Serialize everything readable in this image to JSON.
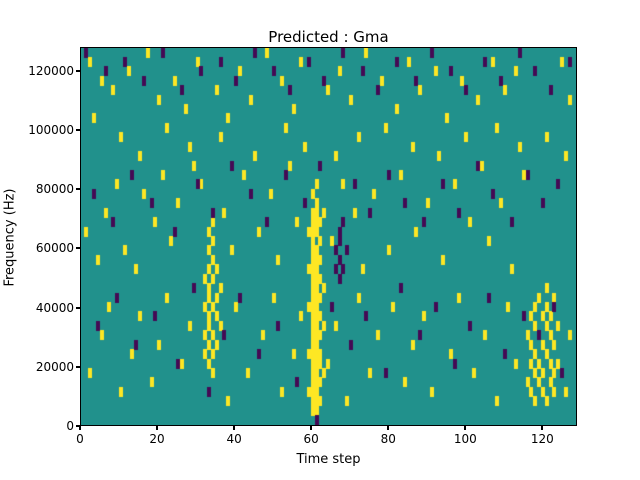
{
  "chart_data": {
    "type": "heatmap",
    "title": "Predicted : Gma",
    "xlabel": "Time step",
    "ylabel": "Frequency (Hz)",
    "xlim": [
      0,
      129
    ],
    "ylim": [
      0,
      128000
    ],
    "x_ticks": [
      0,
      20,
      40,
      60,
      80,
      100,
      120
    ],
    "y_ticks": [
      0,
      20000,
      40000,
      60000,
      80000,
      100000,
      120000
    ],
    "grid_on": false,
    "legend": "none",
    "grid": {
      "cols": 129,
      "rows": 40,
      "row_height_hz": 3200
    },
    "colors": {
      "background": "#21918c",
      "high": "#fde724",
      "low": "#440a54"
    },
    "cells_high": [
      [
        60,
        1
      ],
      [
        60,
        2
      ],
      [
        60,
        3
      ],
      [
        60,
        4
      ],
      [
        60,
        5
      ],
      [
        60,
        6
      ],
      [
        60,
        7
      ],
      [
        60,
        8
      ],
      [
        60,
        9
      ],
      [
        60,
        10
      ],
      [
        60,
        11
      ],
      [
        60,
        12
      ],
      [
        60,
        13
      ],
      [
        60,
        14
      ],
      [
        60,
        15
      ],
      [
        60,
        16
      ],
      [
        60,
        17
      ],
      [
        60,
        18
      ],
      [
        60,
        19
      ],
      [
        60,
        20
      ],
      [
        60,
        21
      ],
      [
        60,
        22
      ],
      [
        60,
        24
      ],
      [
        61,
        1
      ],
      [
        61,
        2
      ],
      [
        61,
        3
      ],
      [
        61,
        4
      ],
      [
        61,
        5
      ],
      [
        61,
        6
      ],
      [
        61,
        7
      ],
      [
        61,
        8
      ],
      [
        61,
        9
      ],
      [
        61,
        10
      ],
      [
        61,
        11
      ],
      [
        61,
        12
      ],
      [
        61,
        13
      ],
      [
        61,
        14
      ],
      [
        61,
        15
      ],
      [
        61,
        16
      ],
      [
        61,
        17
      ],
      [
        61,
        18
      ],
      [
        61,
        20
      ],
      [
        61,
        21
      ],
      [
        61,
        22
      ],
      [
        61,
        23
      ],
      [
        61,
        25
      ],
      [
        62,
        2
      ],
      [
        62,
        4
      ],
      [
        62,
        6
      ],
      [
        62,
        7
      ],
      [
        62,
        9
      ],
      [
        62,
        11
      ],
      [
        62,
        13
      ],
      [
        62,
        15
      ],
      [
        62,
        17
      ],
      [
        62,
        19
      ],
      [
        62,
        21
      ],
      [
        59,
        3
      ],
      [
        59,
        7
      ],
      [
        59,
        12
      ],
      [
        59,
        16
      ],
      [
        59,
        20
      ],
      [
        63,
        5
      ],
      [
        63,
        10
      ],
      [
        63,
        14
      ],
      [
        63,
        22
      ],
      [
        32,
        7
      ],
      [
        32,
        9
      ],
      [
        32,
        12
      ],
      [
        32,
        15
      ],
      [
        33,
        6
      ],
      [
        33,
        8
      ],
      [
        33,
        10
      ],
      [
        33,
        11
      ],
      [
        33,
        13
      ],
      [
        33,
        14
      ],
      [
        33,
        16
      ],
      [
        33,
        18
      ],
      [
        33,
        20
      ],
      [
        34,
        5
      ],
      [
        34,
        7
      ],
      [
        34,
        9
      ],
      [
        34,
        12
      ],
      [
        34,
        15
      ],
      [
        34,
        17
      ],
      [
        34,
        19
      ],
      [
        34,
        21
      ],
      [
        35,
        8
      ],
      [
        35,
        11
      ],
      [
        35,
        13
      ],
      [
        35,
        16
      ],
      [
        36,
        10
      ],
      [
        36,
        14
      ],
      [
        116,
        4
      ],
      [
        116,
        9
      ],
      [
        117,
        3
      ],
      [
        117,
        6
      ],
      [
        117,
        8
      ],
      [
        117,
        11
      ],
      [
        118,
        2
      ],
      [
        118,
        5
      ],
      [
        118,
        7
      ],
      [
        118,
        10
      ],
      [
        118,
        12
      ],
      [
        119,
        4
      ],
      [
        119,
        6
      ],
      [
        119,
        9
      ],
      [
        119,
        13
      ],
      [
        120,
        3
      ],
      [
        120,
        5
      ],
      [
        120,
        8
      ],
      [
        120,
        11
      ],
      [
        121,
        2
      ],
      [
        121,
        7
      ],
      [
        121,
        10
      ],
      [
        121,
        12
      ],
      [
        121,
        14
      ],
      [
        122,
        4
      ],
      [
        122,
        6
      ],
      [
        122,
        9
      ],
      [
        122,
        11
      ],
      [
        123,
        3
      ],
      [
        123,
        5
      ],
      [
        123,
        8
      ],
      [
        123,
        13
      ],
      [
        124,
        6
      ],
      [
        124,
        10
      ],
      [
        2,
        38
      ],
      [
        5,
        36
      ],
      [
        8,
        35
      ],
      [
        12,
        37
      ],
      [
        17,
        39
      ],
      [
        20,
        34
      ],
      [
        24,
        36
      ],
      [
        27,
        33
      ],
      [
        30,
        38
      ],
      [
        35,
        35
      ],
      [
        38,
        32
      ],
      [
        41,
        37
      ],
      [
        44,
        34
      ],
      [
        48,
        39
      ],
      [
        52,
        36
      ],
      [
        55,
        33
      ],
      [
        57,
        38
      ],
      [
        64,
        35
      ],
      [
        67,
        37
      ],
      [
        70,
        34
      ],
      [
        74,
        39
      ],
      [
        78,
        36
      ],
      [
        82,
        33
      ],
      [
        85,
        38
      ],
      [
        88,
        35
      ],
      [
        92,
        37
      ],
      [
        95,
        32
      ],
      [
        99,
        36
      ],
      [
        103,
        34
      ],
      [
        107,
        38
      ],
      [
        110,
        35
      ],
      [
        113,
        37
      ],
      [
        125,
        38
      ],
      [
        127,
        34
      ],
      [
        3,
        32
      ],
      [
        10,
        30
      ],
      [
        15,
        28
      ],
      [
        22,
        31
      ],
      [
        28,
        29
      ],
      [
        36,
        30
      ],
      [
        45,
        28
      ],
      [
        53,
        31
      ],
      [
        58,
        29
      ],
      [
        66,
        28
      ],
      [
        72,
        30
      ],
      [
        79,
        31
      ],
      [
        86,
        29
      ],
      [
        93,
        28
      ],
      [
        100,
        30
      ],
      [
        108,
        31
      ],
      [
        114,
        29
      ],
      [
        121,
        30
      ],
      [
        126,
        28
      ],
      [
        1,
        20
      ],
      [
        4,
        17
      ],
      [
        6,
        22
      ],
      [
        9,
        25
      ],
      [
        11,
        18
      ],
      [
        14,
        16
      ],
      [
        16,
        24
      ],
      [
        19,
        21
      ],
      [
        21,
        26
      ],
      [
        23,
        19
      ],
      [
        25,
        23
      ],
      [
        29,
        27
      ],
      [
        31,
        25
      ],
      [
        37,
        22
      ],
      [
        39,
        18
      ],
      [
        42,
        26
      ],
      [
        46,
        20
      ],
      [
        49,
        24
      ],
      [
        51,
        17
      ],
      [
        54,
        27
      ],
      [
        56,
        21
      ],
      [
        65,
        19
      ],
      [
        68,
        25
      ],
      [
        71,
        22
      ],
      [
        73,
        16
      ],
      [
        76,
        24
      ],
      [
        80,
        18
      ],
      [
        83,
        26
      ],
      [
        87,
        20
      ],
      [
        90,
        23
      ],
      [
        94,
        17
      ],
      [
        97,
        25
      ],
      [
        101,
        21
      ],
      [
        104,
        27
      ],
      [
        106,
        19
      ],
      [
        109,
        23
      ],
      [
        112,
        16
      ],
      [
        115,
        26
      ],
      [
        2,
        5
      ],
      [
        5,
        9
      ],
      [
        7,
        12
      ],
      [
        10,
        3
      ],
      [
        13,
        7
      ],
      [
        15,
        11
      ],
      [
        18,
        4
      ],
      [
        20,
        8
      ],
      [
        22,
        13
      ],
      [
        26,
        6
      ],
      [
        28,
        10
      ],
      [
        38,
        2
      ],
      [
        40,
        12
      ],
      [
        43,
        5
      ],
      [
        47,
        9
      ],
      [
        50,
        13
      ],
      [
        52,
        3
      ],
      [
        55,
        7
      ],
      [
        57,
        11
      ],
      [
        64,
        6
      ],
      [
        66,
        10
      ],
      [
        69,
        2
      ],
      [
        72,
        13
      ],
      [
        75,
        5
      ],
      [
        77,
        9
      ],
      [
        81,
        12
      ],
      [
        84,
        4
      ],
      [
        86,
        8
      ],
      [
        89,
        11
      ],
      [
        91,
        3
      ],
      [
        96,
        7
      ],
      [
        98,
        13
      ],
      [
        102,
        5
      ],
      [
        105,
        9
      ],
      [
        108,
        2
      ],
      [
        111,
        12
      ],
      [
        113,
        6
      ],
      [
        126,
        3
      ],
      [
        127,
        9
      ]
    ],
    "cells_low": [
      [
        1,
        39
      ],
      [
        6,
        37
      ],
      [
        11,
        38
      ],
      [
        16,
        36
      ],
      [
        21,
        39
      ],
      [
        26,
        35
      ],
      [
        31,
        37
      ],
      [
        36,
        38
      ],
      [
        40,
        36
      ],
      [
        45,
        39
      ],
      [
        50,
        37
      ],
      [
        54,
        35
      ],
      [
        59,
        38
      ],
      [
        63,
        36
      ],
      [
        68,
        39
      ],
      [
        73,
        37
      ],
      [
        77,
        35
      ],
      [
        82,
        38
      ],
      [
        87,
        36
      ],
      [
        91,
        39
      ],
      [
        96,
        37
      ],
      [
        100,
        35
      ],
      [
        105,
        38
      ],
      [
        109,
        36
      ],
      [
        114,
        39
      ],
      [
        118,
        37
      ],
      [
        122,
        35
      ],
      [
        127,
        38
      ],
      [
        3,
        24
      ],
      [
        8,
        21
      ],
      [
        13,
        26
      ],
      [
        18,
        23
      ],
      [
        24,
        20
      ],
      [
        30,
        25
      ],
      [
        34,
        22
      ],
      [
        39,
        27
      ],
      [
        44,
        24
      ],
      [
        48,
        21
      ],
      [
        53,
        26
      ],
      [
        58,
        23
      ],
      [
        62,
        27
      ],
      [
        67,
        20
      ],
      [
        71,
        25
      ],
      [
        75,
        22
      ],
      [
        80,
        26
      ],
      [
        84,
        23
      ],
      [
        89,
        21
      ],
      [
        94,
        25
      ],
      [
        98,
        22
      ],
      [
        103,
        27
      ],
      [
        107,
        24
      ],
      [
        112,
        21
      ],
      [
        116,
        26
      ],
      [
        120,
        23
      ],
      [
        124,
        25
      ],
      [
        66,
        16
      ],
      [
        66,
        18
      ],
      [
        67,
        15
      ],
      [
        67,
        17
      ],
      [
        67,
        19
      ],
      [
        68,
        16
      ],
      [
        68,
        21
      ],
      [
        69,
        18
      ],
      [
        4,
        10
      ],
      [
        9,
        13
      ],
      [
        14,
        8
      ],
      [
        19,
        11
      ],
      [
        25,
        6
      ],
      [
        29,
        14
      ],
      [
        33,
        3
      ],
      [
        37,
        9
      ],
      [
        41,
        13
      ],
      [
        46,
        7
      ],
      [
        51,
        10
      ],
      [
        56,
        4
      ],
      [
        61,
        0
      ],
      [
        65,
        12
      ],
      [
        70,
        8
      ],
      [
        74,
        11
      ],
      [
        79,
        5
      ],
      [
        83,
        14
      ],
      [
        88,
        9
      ],
      [
        92,
        12
      ],
      [
        97,
        6
      ],
      [
        101,
        10
      ],
      [
        106,
        13
      ],
      [
        110,
        7
      ],
      [
        115,
        11
      ],
      [
        119,
        9
      ],
      [
        123,
        12
      ],
      [
        125,
        5
      ]
    ]
  }
}
